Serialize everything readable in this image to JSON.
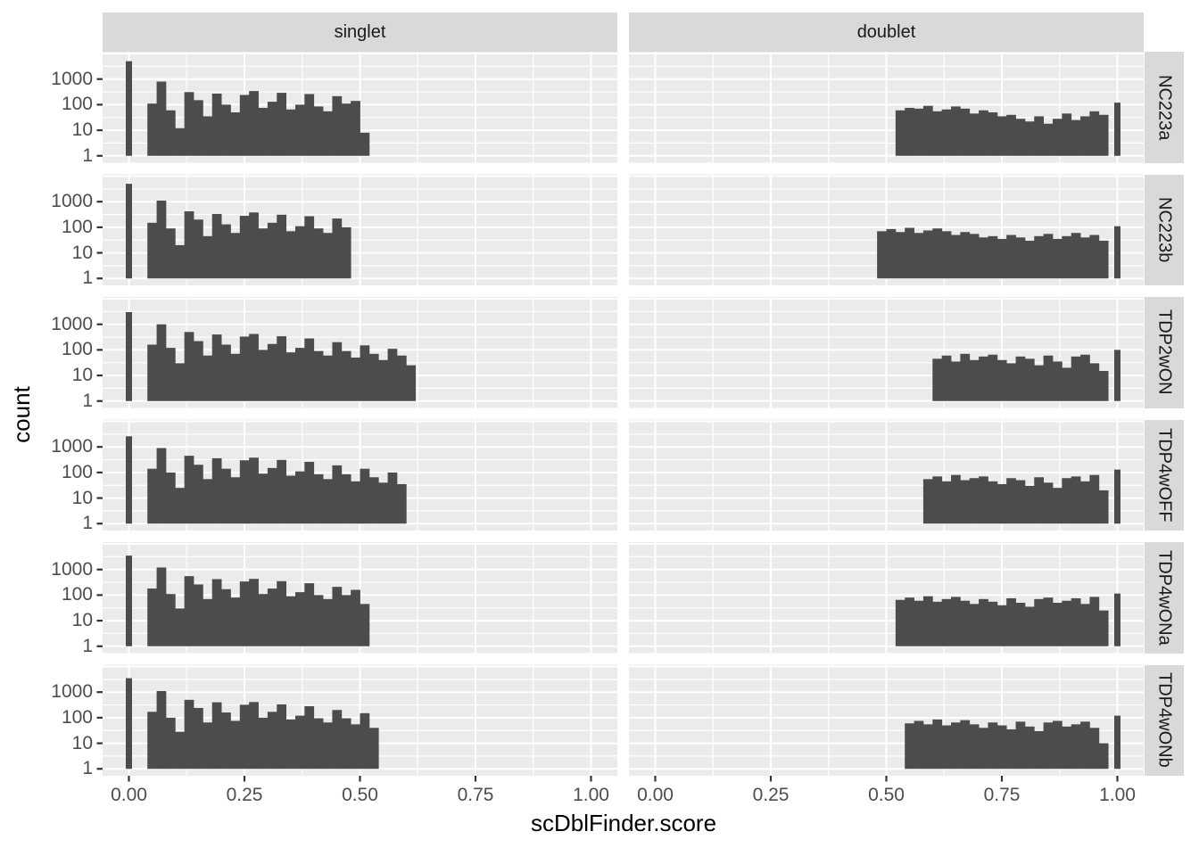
{
  "figure": {
    "panel_bg": "#ebebeb",
    "grid_color": "#ffffff",
    "bar_color": "#4c4c4c",
    "strip_bg": "#d9d9d9",
    "strip_text_color": "#1a1a1a",
    "axis_text_color": "#4d4d4d",
    "tick_mark_color": "#333333",
    "axis_title_color": "#000000"
  },
  "axes": {
    "x_title": "scDblFinder.score",
    "y_title": "count",
    "x_tick_labels": [
      "0.00",
      "0.25",
      "0.50",
      "0.75",
      "1.00"
    ],
    "x_tick_values": [
      0,
      0.25,
      0.5,
      0.75,
      1
    ],
    "y_tick_labels": [
      "1000",
      "100",
      "10",
      "1"
    ],
    "y_tick_values": [
      1000,
      100,
      10,
      1
    ]
  },
  "facets": {
    "columns": [
      "singlet",
      "doublet"
    ],
    "rows": [
      "NC223a",
      "NC223b",
      "TDP2wON",
      "TDP4wOFF",
      "TDP4wONa",
      "TDP4wONb"
    ]
  },
  "chart_data": {
    "type": "bar",
    "subtype": "faceted-histogram",
    "x_variable": "scDblFinder.score",
    "y_variable": "count",
    "y_scale": "log10",
    "binwidth": 0.02,
    "x_axis": {
      "ticks": [
        0,
        0.25,
        0.5,
        0.75,
        1
      ],
      "tick_labels": [
        "0.00",
        "0.25",
        "0.50",
        "0.75",
        "1.00"
      ],
      "range_with_expansion": [
        -0.057,
        1.057
      ]
    },
    "y_axis": {
      "ticks": [
        1,
        10,
        100,
        1000
      ],
      "tick_labels": [
        "1",
        "10",
        "100",
        "1000"
      ],
      "log10_range_with_expansion": [
        -0.27,
        4.07
      ],
      "minor_breaks_log10": [
        0.5,
        1.5,
        2.5,
        3.5
      ]
    },
    "grid": {
      "major": true,
      "minor": true
    },
    "panels": [
      {
        "r": 0,
        "c": 0,
        "row": "NC223a",
        "col": "singlet",
        "spike": {
          "x": 0,
          "count": 5000
        },
        "block": {
          "start": 0.04,
          "counts": [
            110,
            800,
            60,
            12,
            310,
            150,
            35,
            270,
            100,
            50,
            240,
            340,
            75,
            130,
            290,
            65,
            100,
            260,
            85,
            55,
            215,
            110,
            140,
            8
          ]
        }
      },
      {
        "r": 0,
        "c": 1,
        "row": "NC223a",
        "col": "doublet",
        "spike": {
          "x": 1,
          "count": 120
        },
        "block": {
          "start": 0.52,
          "counts": [
            60,
            75,
            70,
            90,
            55,
            65,
            85,
            70,
            45,
            60,
            50,
            35,
            40,
            28,
            22,
            35,
            18,
            28,
            45,
            25,
            35,
            55,
            40
          ]
        }
      },
      {
        "r": 1,
        "c": 0,
        "row": "NC223b",
        "col": "singlet",
        "spike": {
          "x": 0,
          "count": 5000
        },
        "block": {
          "start": 0.04,
          "counts": [
            150,
            1100,
            90,
            20,
            420,
            200,
            45,
            330,
            130,
            60,
            280,
            380,
            90,
            150,
            310,
            70,
            110,
            270,
            90,
            60,
            220,
            100
          ]
        }
      },
      {
        "r": 1,
        "c": 1,
        "row": "NC223b",
        "col": "doublet",
        "spike": {
          "x": 1,
          "count": 110
        },
        "block": {
          "start": 0.48,
          "counts": [
            70,
            85,
            65,
            95,
            60,
            75,
            90,
            70,
            50,
            65,
            55,
            40,
            45,
            35,
            50,
            40,
            30,
            45,
            55,
            35,
            45,
            60,
            40,
            50,
            30
          ]
        }
      },
      {
        "r": 2,
        "c": 0,
        "row": "TDP2wON",
        "col": "singlet",
        "spike": {
          "x": 0,
          "count": 3000
        },
        "block": {
          "start": 0.04,
          "counts": [
            160,
            1000,
            120,
            30,
            500,
            220,
            60,
            400,
            160,
            70,
            330,
            420,
            100,
            170,
            340,
            80,
            120,
            280,
            90,
            60,
            200,
            90,
            50,
            150,
            70,
            40,
            110,
            60,
            25
          ]
        }
      },
      {
        "r": 2,
        "c": 1,
        "row": "TDP2wON",
        "col": "doublet",
        "spike": {
          "x": 1,
          "count": 100
        },
        "block": {
          "start": 0.6,
          "counts": [
            45,
            60,
            35,
            70,
            40,
            55,
            65,
            40,
            30,
            55,
            45,
            25,
            60,
            35,
            20,
            55,
            65,
            30,
            15
          ]
        }
      },
      {
        "r": 3,
        "c": 0,
        "row": "TDP4wOFF",
        "col": "singlet",
        "spike": {
          "x": 0,
          "count": 2600
        },
        "block": {
          "start": 0.04,
          "counts": [
            140,
            900,
            100,
            25,
            450,
            200,
            55,
            360,
            140,
            65,
            300,
            380,
            90,
            150,
            310,
            75,
            110,
            260,
            85,
            55,
            190,
            85,
            45,
            140,
            65,
            40,
            100,
            35
          ]
        }
      },
      {
        "r": 3,
        "c": 1,
        "row": "TDP4wOFF",
        "col": "doublet",
        "spike": {
          "x": 1,
          "count": 130
        },
        "block": {
          "start": 0.58,
          "counts": [
            55,
            70,
            45,
            80,
            50,
            60,
            70,
            45,
            35,
            60,
            50,
            30,
            65,
            40,
            25,
            60,
            70,
            45,
            80,
            20
          ]
        }
      },
      {
        "r": 4,
        "c": 0,
        "row": "TDP4wONa",
        "col": "singlet",
        "spike": {
          "x": 0,
          "count": 3500
        },
        "block": {
          "start": 0.04,
          "counts": [
            180,
            1200,
            110,
            30,
            550,
            260,
            70,
            420,
            170,
            80,
            340,
            430,
            110,
            180,
            350,
            90,
            130,
            290,
            100,
            70,
            210,
            100,
            160,
            45
          ]
        }
      },
      {
        "r": 4,
        "c": 1,
        "row": "TDP4wONa",
        "col": "doublet",
        "spike": {
          "x": 1,
          "count": 115
        },
        "block": {
          "start": 0.52,
          "counts": [
            65,
            80,
            60,
            90,
            55,
            70,
            85,
            60,
            45,
            70,
            55,
            40,
            75,
            50,
            35,
            70,
            80,
            50,
            60,
            75,
            45,
            85,
            25
          ]
        }
      },
      {
        "r": 5,
        "c": 0,
        "row": "TDP4wONb",
        "col": "singlet",
        "spike": {
          "x": 0,
          "count": 3500
        },
        "block": {
          "start": 0.04,
          "counts": [
            170,
            1100,
            100,
            28,
            500,
            240,
            65,
            400,
            160,
            75,
            320,
            410,
            100,
            170,
            330,
            85,
            120,
            280,
            95,
            65,
            200,
            95,
            55,
            150,
            40
          ]
        }
      },
      {
        "r": 5,
        "c": 1,
        "row": "TDP4wONb",
        "col": "doublet",
        "spike": {
          "x": 1,
          "count": 120
        },
        "block": {
          "start": 0.54,
          "counts": [
            60,
            75,
            55,
            85,
            50,
            65,
            80,
            55,
            40,
            65,
            50,
            35,
            70,
            45,
            30,
            65,
            75,
            45,
            55,
            70,
            40,
            10
          ]
        }
      }
    ]
  }
}
